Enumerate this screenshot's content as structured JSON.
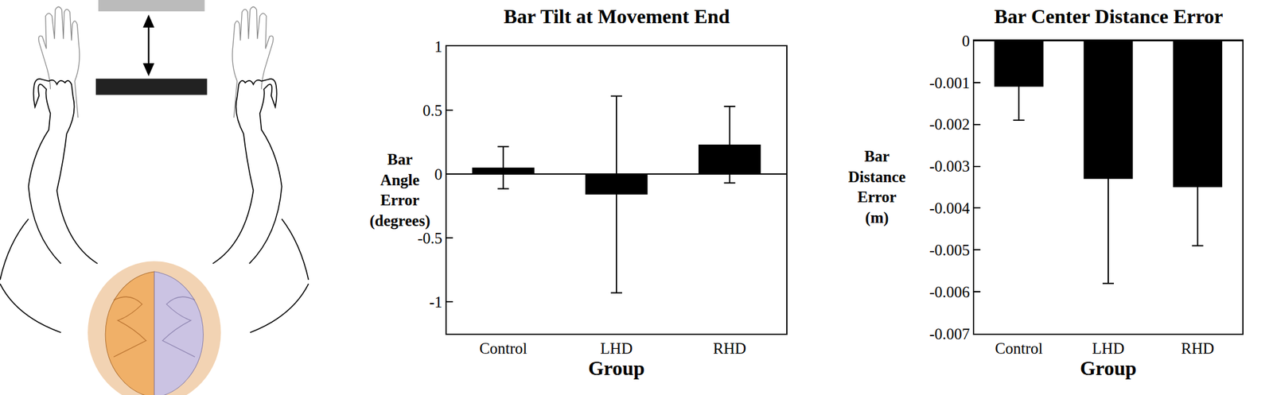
{
  "chart_data": [
    {
      "type": "bar",
      "title": "Bar Tilt at Movement End",
      "x_label": "Group",
      "y_label": "Bar Angle Error (degrees)",
      "categories": [
        "Control",
        "LHD",
        "RHD"
      ],
      "values": [
        0.05,
        -0.16,
        0.23
      ],
      "error_bars": [
        0.165,
        0.77,
        0.3
      ],
      "color": "#000000",
      "ylim": [
        -1.25,
        1
      ],
      "yticks": [
        -1,
        -0.5,
        0,
        0.5,
        1
      ]
    },
    {
      "type": "bar",
      "title": "Bar Center Distance Error",
      "x_label": "Group",
      "y_label": "Bar Distance Error (m)",
      "categories": [
        "Control",
        "LHD",
        "RHD"
      ],
      "values": [
        -0.0011,
        -0.0033,
        -0.0035
      ],
      "error_bars": [
        0.0008,
        0.0025,
        0.0014
      ],
      "color": "#000000",
      "ylim": [
        -0.007,
        0
      ],
      "yticks": [
        -0.007,
        -0.006,
        -0.005,
        -0.004,
        -0.003,
        -0.002,
        -0.001,
        0
      ]
    }
  ]
}
